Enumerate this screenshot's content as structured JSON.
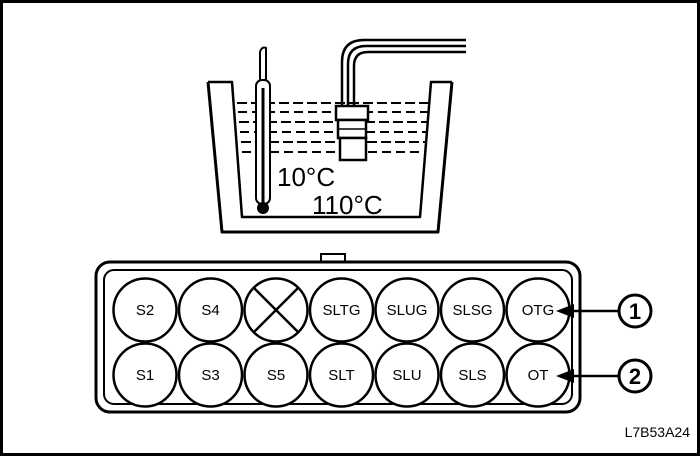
{
  "bath": {
    "temp_low": "10°C",
    "temp_high": "110°C"
  },
  "connector": {
    "top_row": [
      {
        "label": "S2",
        "x_mark": false
      },
      {
        "label": "S4",
        "x_mark": false
      },
      {
        "label": "",
        "x_mark": true
      },
      {
        "label": "SLTG",
        "x_mark": false
      },
      {
        "label": "SLUG",
        "x_mark": false
      },
      {
        "label": "SLSG",
        "x_mark": false
      },
      {
        "label": "OTG",
        "x_mark": false
      }
    ],
    "bottom_row": [
      {
        "label": "S1",
        "x_mark": false
      },
      {
        "label": "S3",
        "x_mark": false
      },
      {
        "label": "S5",
        "x_mark": false
      },
      {
        "label": "SLT",
        "x_mark": false
      },
      {
        "label": "SLU",
        "x_mark": false
      },
      {
        "label": "SLS",
        "x_mark": false
      },
      {
        "label": "OT",
        "x_mark": false
      }
    ]
  },
  "callouts": [
    {
      "number": "1"
    },
    {
      "number": "2"
    }
  ],
  "figure_code": "L7B53A24"
}
